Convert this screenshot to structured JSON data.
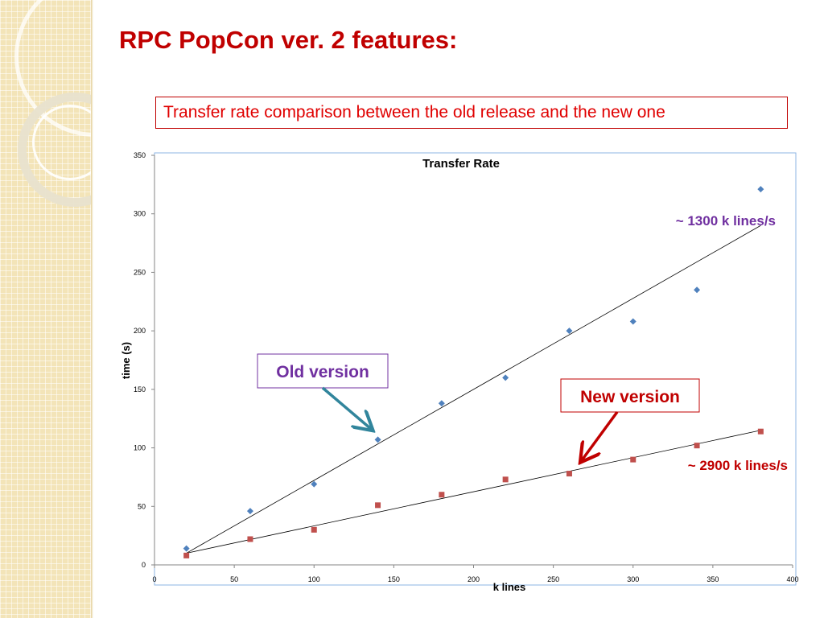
{
  "slide": {
    "title": "RPC PopCon ver. 2 features:",
    "subtitle": "Transfer rate comparison between the old release and the new one"
  },
  "annotations": {
    "old_version_label": "Old version",
    "new_version_label": "New version",
    "old_rate": "~ 1300 k lines/s",
    "new_rate": "~ 2900 k lines/s"
  },
  "colors": {
    "title": "#c00000",
    "old_series": "#4f81bd",
    "new_series": "#c0504d",
    "old_label": "#7030a0",
    "new_label": "#c00000",
    "old_arrow": "#31859c",
    "new_arrow": "#c00000"
  },
  "chart_data": {
    "type": "scatter",
    "title": "Transfer Rate",
    "xlabel": "k lines",
    "ylabel": "time (s)",
    "xlim": [
      0,
      400
    ],
    "ylim": [
      0,
      350
    ],
    "xticks": [
      0,
      50,
      100,
      150,
      200,
      250,
      300,
      350,
      400
    ],
    "yticks": [
      0,
      50,
      100,
      150,
      200,
      250,
      300,
      350
    ],
    "grid": false,
    "legend": "none",
    "series": [
      {
        "marker": "diamond",
        "color": "#4f81bd",
        "x": [
          20,
          60,
          100,
          140,
          180,
          220,
          260,
          300,
          340,
          380
        ],
        "y": [
          14,
          46,
          69,
          107,
          138,
          160,
          200,
          208,
          235,
          321
        ],
        "trendline": [
          [
            20,
            10
          ],
          [
            380,
            290
          ]
        ]
      },
      {
        "marker": "square",
        "color": "#c0504d",
        "x": [
          20,
          60,
          100,
          140,
          180,
          220,
          260,
          300,
          340,
          380
        ],
        "y": [
          8,
          22,
          30,
          51,
          60,
          73,
          78,
          90,
          102,
          114
        ],
        "trendline": [
          [
            20,
            10
          ],
          [
            380,
            115
          ]
        ]
      }
    ]
  }
}
